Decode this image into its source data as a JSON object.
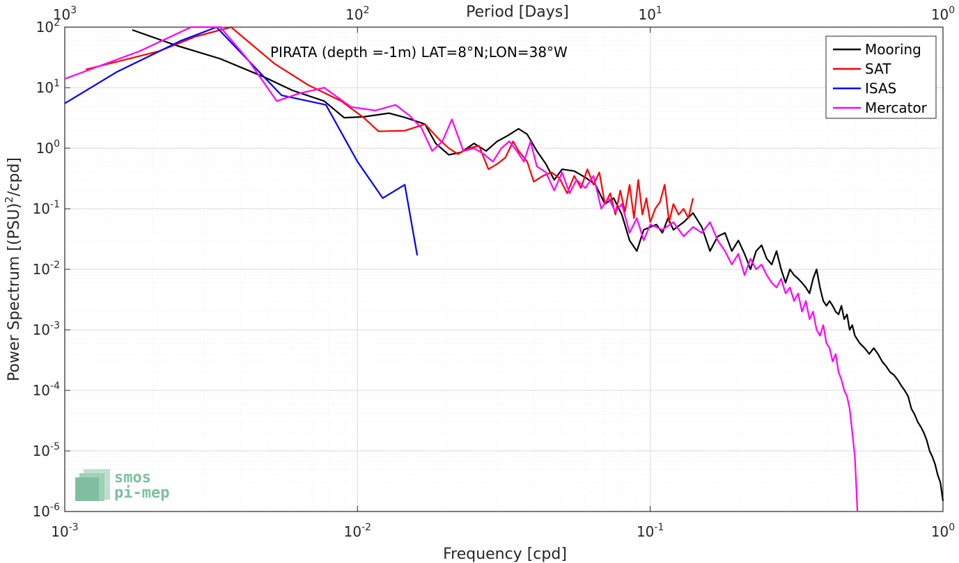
{
  "chart_data": {
    "type": "line",
    "title": "",
    "annotation": "PIRATA (depth =-1m) LAT=8°N;LON=38°W",
    "xlabel": "Frequency [cpd]",
    "ylabel": "Power Spectrum [(PSU)",
    "ylabel_sup": "2",
    "ylabel_tail": "/cpd]",
    "top_axis_label": "Period [Days]",
    "x_scale": "log",
    "y_scale": "log",
    "xlim": [
      0.001,
      1
    ],
    "ylim": [
      1e-06,
      100
    ],
    "grid": true,
    "legend_position": "top-right",
    "x_ticks": [
      {
        "value": 0.001,
        "exp": "-3"
      },
      {
        "value": 0.01,
        "exp": "-2"
      },
      {
        "value": 0.1,
        "exp": "-1"
      },
      {
        "value": 1,
        "exp": "0"
      }
    ],
    "y_ticks": [
      {
        "value": 100,
        "exp": "2"
      },
      {
        "value": 10,
        "exp": "1"
      },
      {
        "value": 1,
        "exp": "0"
      },
      {
        "value": 0.1,
        "exp": "-1"
      },
      {
        "value": 0.01,
        "exp": "-2"
      },
      {
        "value": 0.001,
        "exp": "-3"
      },
      {
        "value": 0.0001,
        "exp": "-4"
      },
      {
        "value": 1e-05,
        "exp": "-5"
      },
      {
        "value": 1e-06,
        "exp": "-6"
      }
    ],
    "top_ticks": [
      {
        "value": 0.001,
        "exp": "3"
      },
      {
        "value": 0.01,
        "exp": "2"
      },
      {
        "value": 0.1,
        "exp": "1"
      },
      {
        "value": 1,
        "exp": "0"
      }
    ],
    "tick_base": "10",
    "series": [
      {
        "name": "Mooring",
        "color": "#000000",
        "x": [
          0.0017,
          0.0024,
          0.0034,
          0.0048,
          0.006,
          0.0077,
          0.009,
          0.0105,
          0.0128,
          0.0146,
          0.017,
          0.0185,
          0.0205,
          0.0225,
          0.025,
          0.0275,
          0.03,
          0.0325,
          0.0355,
          0.038,
          0.041,
          0.044,
          0.047,
          0.05,
          0.055,
          0.06,
          0.065,
          0.07,
          0.075,
          0.08,
          0.085,
          0.09,
          0.095,
          0.1,
          0.105,
          0.11,
          0.115,
          0.12,
          0.13,
          0.14,
          0.15,
          0.16,
          0.17,
          0.18,
          0.19,
          0.2,
          0.21,
          0.22,
          0.23,
          0.24,
          0.25,
          0.26,
          0.27,
          0.28,
          0.29,
          0.3,
          0.31,
          0.32,
          0.33,
          0.34,
          0.35,
          0.36,
          0.37,
          0.38,
          0.39,
          0.4,
          0.41,
          0.42,
          0.43,
          0.44,
          0.45,
          0.46,
          0.47,
          0.48,
          0.49,
          0.5,
          0.52,
          0.54,
          0.56,
          0.58,
          0.6,
          0.62,
          0.64,
          0.66,
          0.68,
          0.7,
          0.72,
          0.74,
          0.76,
          0.78,
          0.8,
          0.82,
          0.84,
          0.86,
          0.88,
          0.9,
          0.92,
          0.94,
          0.96,
          0.98,
          1.0
        ],
        "y": [
          90,
          50,
          30,
          15,
          9,
          6,
          3.2,
          3.3,
          3.8,
          3.2,
          2.5,
          1.2,
          0.78,
          0.85,
          1.2,
          0.9,
          1.3,
          1.6,
          2.1,
          1.7,
          0.9,
          0.55,
          0.3,
          0.45,
          0.42,
          0.33,
          0.25,
          0.12,
          0.15,
          0.08,
          0.03,
          0.02,
          0.045,
          0.05,
          0.055,
          0.04,
          0.07,
          0.045,
          0.06,
          0.085,
          0.05,
          0.02,
          0.035,
          0.04,
          0.02,
          0.03,
          0.018,
          0.01,
          0.02,
          0.025,
          0.015,
          0.012,
          0.02,
          0.01,
          0.006,
          0.01,
          0.008,
          0.007,
          0.006,
          0.005,
          0.004,
          0.007,
          0.01,
          0.005,
          0.003,
          0.0025,
          0.003,
          0.0025,
          0.002,
          0.0018,
          0.0025,
          0.0015,
          0.0018,
          0.001,
          0.0012,
          0.0008,
          0.0006,
          0.0005,
          0.0004,
          0.0005,
          0.0004,
          0.0003,
          0.00025,
          0.0002,
          0.00018,
          0.00015,
          0.00012,
          0.0001,
          8e-05,
          5e-05,
          4e-05,
          3e-05,
          2.5e-05,
          2e-05,
          1.5e-05,
          1e-05,
          8e-06,
          6e-06,
          4e-06,
          3e-06,
          1.5e-06
        ]
      },
      {
        "name": "SAT",
        "color": "#ff0000",
        "x": [
          0.00118,
          0.0021,
          0.0028,
          0.0037,
          0.0052,
          0.0068,
          0.0088,
          0.0105,
          0.0118,
          0.0145,
          0.017,
          0.019,
          0.0205,
          0.022,
          0.024,
          0.026,
          0.028,
          0.03,
          0.032,
          0.034,
          0.0355,
          0.038,
          0.04,
          0.043,
          0.046,
          0.049,
          0.052,
          0.055,
          0.058,
          0.061,
          0.064,
          0.067,
          0.07,
          0.073,
          0.076,
          0.079,
          0.082,
          0.085,
          0.088,
          0.091,
          0.094,
          0.097,
          0.1,
          0.104,
          0.108,
          0.112,
          0.116,
          0.12,
          0.125,
          0.13,
          0.135,
          0.14
        ],
        "y": [
          20,
          40,
          70,
          100,
          25,
          11,
          6,
          3.2,
          1.9,
          1.95,
          2.5,
          1.4,
          1.0,
          0.8,
          1.0,
          1.1,
          0.45,
          0.55,
          0.7,
          1.3,
          0.9,
          0.6,
          0.28,
          0.35,
          0.4,
          0.32,
          0.18,
          0.35,
          0.22,
          0.45,
          0.25,
          0.4,
          0.12,
          0.18,
          0.08,
          0.2,
          0.09,
          0.25,
          0.07,
          0.3,
          0.08,
          0.15,
          0.06,
          0.1,
          0.13,
          0.25,
          0.06,
          0.12,
          0.08,
          0.1,
          0.07,
          0.15
        ]
      },
      {
        "name": "ISAS",
        "color": "#0000ff",
        "x": [
          0.001,
          0.0015,
          0.0025,
          0.0033,
          0.0055,
          0.0078,
          0.01,
          0.0122,
          0.0145,
          0.016
        ],
        "y": [
          5.5,
          18,
          60,
          100,
          7.5,
          5.2,
          0.6,
          0.15,
          0.25,
          0.017
        ]
      },
      {
        "name": "Mercator",
        "color": "#ff00ff",
        "x": [
          0.001,
          0.0018,
          0.0027,
          0.0034,
          0.0042,
          0.0053,
          0.0063,
          0.0077,
          0.0095,
          0.0115,
          0.0135,
          0.015,
          0.0165,
          0.018,
          0.0195,
          0.021,
          0.023,
          0.025,
          0.027,
          0.029,
          0.031,
          0.033,
          0.035,
          0.037,
          0.039,
          0.041,
          0.044,
          0.047,
          0.05,
          0.053,
          0.056,
          0.06,
          0.064,
          0.068,
          0.072,
          0.076,
          0.08,
          0.085,
          0.09,
          0.095,
          0.1,
          0.11,
          0.12,
          0.13,
          0.14,
          0.15,
          0.16,
          0.17,
          0.18,
          0.19,
          0.2,
          0.21,
          0.22,
          0.23,
          0.24,
          0.25,
          0.26,
          0.27,
          0.28,
          0.29,
          0.3,
          0.31,
          0.32,
          0.33,
          0.34,
          0.35,
          0.36,
          0.37,
          0.38,
          0.39,
          0.4,
          0.41,
          0.42,
          0.43,
          0.44,
          0.45,
          0.46,
          0.47,
          0.48,
          0.49,
          0.5,
          0.505,
          0.51
        ],
        "y": [
          14,
          40,
          100,
          100,
          30,
          6,
          8,
          10,
          4.8,
          4.2,
          5.2,
          3.5,
          2.2,
          0.9,
          1.3,
          3.0,
          0.9,
          1.0,
          0.8,
          0.6,
          1.0,
          1.3,
          0.9,
          0.6,
          1.3,
          0.5,
          0.4,
          0.2,
          0.4,
          0.18,
          0.3,
          0.22,
          0.35,
          0.1,
          0.15,
          0.09,
          0.12,
          0.04,
          0.07,
          0.03,
          0.055,
          0.045,
          0.06,
          0.035,
          0.05,
          0.04,
          0.06,
          0.03,
          0.02,
          0.012,
          0.018,
          0.008,
          0.015,
          0.01,
          0.012,
          0.008,
          0.006,
          0.005,
          0.007,
          0.004,
          0.005,
          0.003,
          0.004,
          0.002,
          0.003,
          0.0015,
          0.002,
          0.001,
          0.0008,
          0.0012,
          0.0006,
          0.0005,
          0.0003,
          0.0004,
          0.0002,
          0.00015,
          0.0001,
          8e-05,
          5e-05,
          2e-05,
          8e-06,
          3e-06,
          1e-06
        ]
      }
    ]
  },
  "logo": {
    "line1": "smos",
    "line2": "pi-mep",
    "color": "#7fbf9f"
  }
}
